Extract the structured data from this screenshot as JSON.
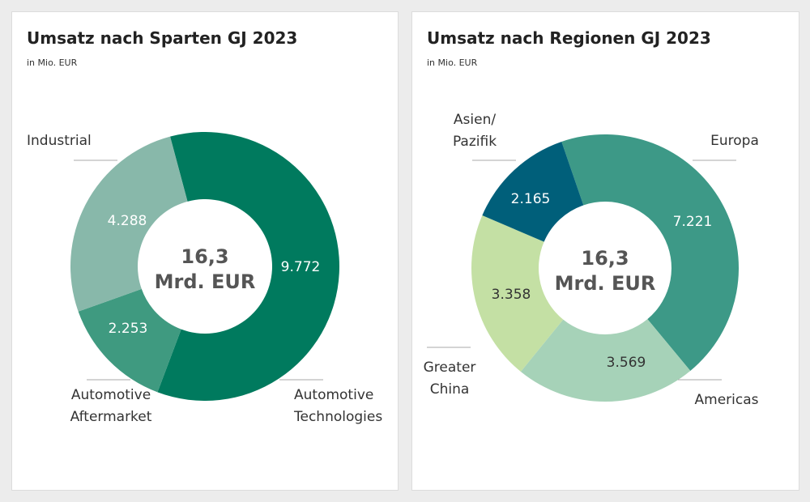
{
  "chart_data": [
    {
      "type": "pie",
      "title": "Umsatz nach Sparten GJ 2023",
      "subtitle": "in Mio. EUR",
      "center_label": [
        "16,3",
        "Mrd. EUR"
      ],
      "categories": [
        "Automotive Technologies",
        "Automotive Aftermarket",
        "Industrial"
      ],
      "values": [
        9772,
        2253,
        4288
      ],
      "value_labels": [
        "9.772",
        "2.253",
        "4.288"
      ],
      "label_lines": [
        [
          "Automotive",
          "Technologies"
        ],
        [
          "Automotive",
          "Aftermarket"
        ],
        [
          "Industrial"
        ]
      ],
      "colors": [
        "#007a5e",
        "#3f9a80",
        "#88b8aa"
      ],
      "value_text_colors": [
        "#ffffff",
        "#ffffff",
        "#ffffff"
      ],
      "donut": true
    },
    {
      "type": "pie",
      "title": "Umsatz nach Regionen GJ 2023",
      "subtitle": "in Mio. EUR",
      "center_label": [
        "16,3",
        "Mrd. EUR"
      ],
      "categories": [
        "Europa",
        "Americas",
        "Greater China",
        "Asien/ Pazifik"
      ],
      "values": [
        7221,
        3569,
        3358,
        2165
      ],
      "value_labels": [
        "7.221",
        "3.569",
        "3.358",
        "2.165"
      ],
      "label_lines": [
        [
          "Europa"
        ],
        [
          "Americas"
        ],
        [
          "Greater",
          "China"
        ],
        [
          "Asien/",
          "Pazifik"
        ]
      ],
      "colors": [
        "#3d9987",
        "#a6d2b8",
        "#c4e0a4",
        "#005f7a"
      ],
      "value_text_colors": [
        "#ffffff",
        "#333333",
        "#333333",
        "#ffffff"
      ],
      "donut": true
    }
  ]
}
